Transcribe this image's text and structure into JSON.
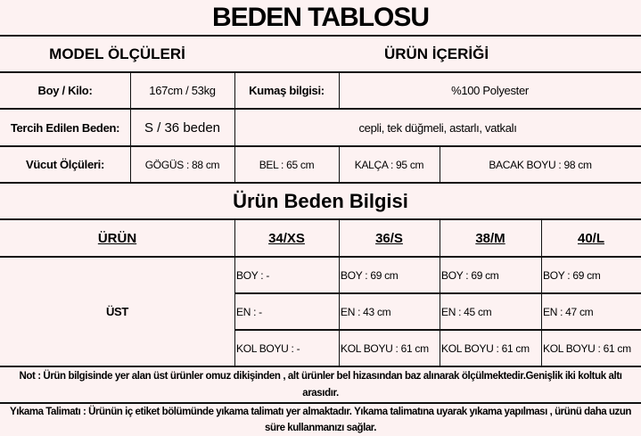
{
  "title": "BEDEN TABLOSU",
  "model": {
    "heading": "MODEL ÖLÇÜLERİ",
    "boy_kilo_label": "Boy / Kilo:",
    "boy_kilo_value": "167cm / 53kg",
    "tercih_label": "Tercih Edilen Beden:",
    "tercih_value": "S / 36 beden",
    "vucut_label": "Vücut Ölçüleri:",
    "gogus": "GÖGÜS : 88 cm",
    "bel": "BEL : 65 cm",
    "kalca": "KALÇA : 95 cm",
    "bacak": "BACAK BOYU : 98 cm"
  },
  "product": {
    "heading": "ÜRÜN İÇERİĞİ",
    "fabric_label": "Kumaş bilgisi:",
    "fabric_value": "%100 Polyester",
    "features": "cepli, tek düğmeli, astarlı, vatkalı"
  },
  "size_table": {
    "title": "Ürün Beden Bilgisi",
    "headers": [
      "ÜRÜN",
      "34/XS",
      "36/S",
      "38/M",
      "40/L"
    ],
    "product": "ÜST",
    "rows": [
      [
        "BOY : -",
        "BOY : 69 cm",
        "BOY : 69 cm",
        "BOY : 69 cm"
      ],
      [
        "EN : -",
        "EN : 43 cm",
        "EN : 45 cm",
        "EN : 47 cm"
      ],
      [
        "KOL BOYU : -",
        "KOL BOYU : 61 cm",
        "KOL BOYU : 61 cm",
        "KOL BOYU : 61 cm"
      ]
    ]
  },
  "note": "Not : Ürün bilgisinde yer alan üst ürünler omuz dikişinden , alt ürünler bel hizasından baz alınarak ölçülmektedir.Genişlik iki koltuk altı arasıdır.",
  "wash": "Yıkama Talimatı : Ürünün iç etiket bölümünde yıkama talimatı yer almaktadır. Yıkama talimatına uyarak yıkama yapılması , ürünü daha uzun süre kullanmanızı sağlar."
}
